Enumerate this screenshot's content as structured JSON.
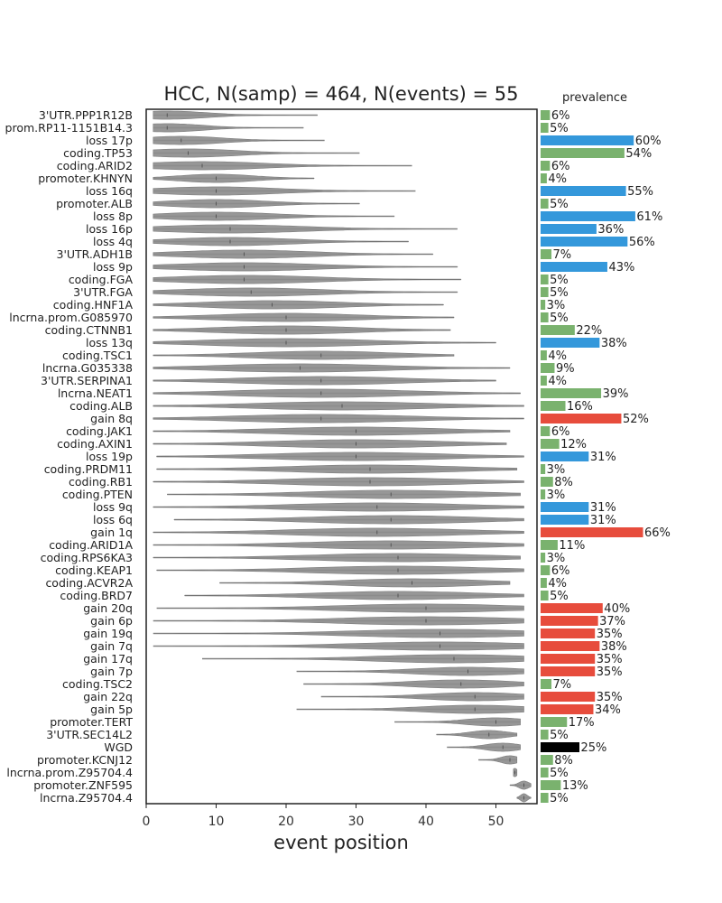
{
  "chart_data": {
    "type": "violin",
    "title": "HCC, N(samp) = 464, N(events) = 55",
    "xlabel": "event position",
    "ylabel": "",
    "xlim": [
      0,
      56
    ],
    "x_ticks": [
      "0",
      "10",
      "20",
      "30",
      "40",
      "50"
    ],
    "x_tick_values": [
      0,
      10,
      20,
      30,
      40,
      50
    ],
    "grid": false,
    "side_panel_title": "prevalence",
    "colors": {
      "violin": "#8c8c8c",
      "snv_noncoding": "#7ab26e",
      "loss": "#3498db",
      "gain": "#e74c3c",
      "wgd": "#000000"
    },
    "events": [
      {
        "name": "3'UTR.PPP1R12B",
        "min": 1,
        "max": 24.5,
        "mode": 3,
        "prevalence": 6,
        "type": "snv"
      },
      {
        "name": "prom.RP11-1151B14.3",
        "min": 1,
        "max": 22.5,
        "mode": 3,
        "prevalence": 5,
        "type": "snv"
      },
      {
        "name": "loss 17p",
        "min": 1,
        "max": 25.5,
        "mode": 5,
        "prevalence": 60,
        "type": "loss"
      },
      {
        "name": "coding.TP53",
        "min": 1,
        "max": 30.5,
        "mode": 6,
        "prevalence": 54,
        "type": "snv"
      },
      {
        "name": "coding.ARID2",
        "min": 1,
        "max": 38,
        "mode": 8,
        "prevalence": 6,
        "type": "snv"
      },
      {
        "name": "promoter.KHNYN",
        "min": 1,
        "max": 24,
        "mode": 10,
        "prevalence": 4,
        "type": "snv"
      },
      {
        "name": "loss 16q",
        "min": 1,
        "max": 38.5,
        "mode": 10,
        "prevalence": 55,
        "type": "loss"
      },
      {
        "name": "promoter.ALB",
        "min": 1,
        "max": 30.5,
        "mode": 10,
        "prevalence": 5,
        "type": "snv"
      },
      {
        "name": "loss 8p",
        "min": 1,
        "max": 35.5,
        "mode": 10,
        "prevalence": 61,
        "type": "loss"
      },
      {
        "name": "loss 16p",
        "min": 1,
        "max": 44.5,
        "mode": 12,
        "prevalence": 36,
        "type": "loss"
      },
      {
        "name": "loss 4q",
        "min": 1,
        "max": 37.5,
        "mode": 12,
        "prevalence": 56,
        "type": "loss"
      },
      {
        "name": "3'UTR.ADH1B",
        "min": 1,
        "max": 41,
        "mode": 14,
        "prevalence": 7,
        "type": "snv"
      },
      {
        "name": "loss 9p",
        "min": 1,
        "max": 44.5,
        "mode": 14,
        "prevalence": 43,
        "type": "loss"
      },
      {
        "name": "coding.FGA",
        "min": 1,
        "max": 45,
        "mode": 14,
        "prevalence": 5,
        "type": "snv"
      },
      {
        "name": "3'UTR.FGA",
        "min": 1,
        "max": 44.5,
        "mode": 15,
        "prevalence": 5,
        "type": "snv"
      },
      {
        "name": "coding.HNF1A",
        "min": 1,
        "max": 42.5,
        "mode": 18,
        "prevalence": 3,
        "type": "snv"
      },
      {
        "name": "lncrna.prom.G085970",
        "min": 1,
        "max": 44,
        "mode": 20,
        "prevalence": 5,
        "type": "snv"
      },
      {
        "name": "coding.CTNNB1",
        "min": 1,
        "max": 43.5,
        "mode": 20,
        "prevalence": 22,
        "type": "snv"
      },
      {
        "name": "loss 13q",
        "min": 1,
        "max": 50,
        "mode": 20,
        "prevalence": 38,
        "type": "loss"
      },
      {
        "name": "coding.TSC1",
        "min": 1,
        "max": 44,
        "mode": 25,
        "prevalence": 4,
        "type": "snv"
      },
      {
        "name": "lncrna.G035338",
        "min": 1,
        "max": 52,
        "mode": 22,
        "prevalence": 9,
        "type": "snv"
      },
      {
        "name": "3'UTR.SERPINA1",
        "min": 1,
        "max": 50,
        "mode": 25,
        "prevalence": 4,
        "type": "snv"
      },
      {
        "name": "lncrna.NEAT1",
        "min": 1,
        "max": 53.5,
        "mode": 25,
        "prevalence": 39,
        "type": "snv"
      },
      {
        "name": "coding.ALB",
        "min": 1,
        "max": 54,
        "mode": 28,
        "prevalence": 16,
        "type": "snv"
      },
      {
        "name": "gain 8q",
        "min": 1,
        "max": 54,
        "mode": 25,
        "prevalence": 52,
        "type": "gain"
      },
      {
        "name": "coding.JAK1",
        "min": 1,
        "max": 52,
        "mode": 30,
        "prevalence": 6,
        "type": "snv"
      },
      {
        "name": "coding.AXIN1",
        "min": 1,
        "max": 51.5,
        "mode": 30,
        "prevalence": 12,
        "type": "snv"
      },
      {
        "name": "loss 19p",
        "min": 1.5,
        "max": 54,
        "mode": 30,
        "prevalence": 31,
        "type": "loss"
      },
      {
        "name": "coding.PRDM11",
        "min": 1.5,
        "max": 53,
        "mode": 32,
        "prevalence": 3,
        "type": "snv"
      },
      {
        "name": "coding.RB1",
        "min": 1,
        "max": 54,
        "mode": 32,
        "prevalence": 8,
        "type": "snv"
      },
      {
        "name": "coding.PTEN",
        "min": 3,
        "max": 53.5,
        "mode": 35,
        "prevalence": 3,
        "type": "snv"
      },
      {
        "name": "loss 9q",
        "min": 1,
        "max": 54,
        "mode": 33,
        "prevalence": 31,
        "type": "loss"
      },
      {
        "name": "loss 6q",
        "min": 4,
        "max": 54,
        "mode": 35,
        "prevalence": 31,
        "type": "loss"
      },
      {
        "name": "gain 1q",
        "min": 1,
        "max": 54,
        "mode": 33,
        "prevalence": 66,
        "type": "gain"
      },
      {
        "name": "coding.ARID1A",
        "min": 1,
        "max": 54,
        "mode": 35,
        "prevalence": 11,
        "type": "snv"
      },
      {
        "name": "coding.RPS6KA3",
        "min": 1,
        "max": 53.5,
        "mode": 36,
        "prevalence": 3,
        "type": "snv"
      },
      {
        "name": "coding.KEAP1",
        "min": 1.5,
        "max": 54,
        "mode": 36,
        "prevalence": 6,
        "type": "snv"
      },
      {
        "name": "coding.ACVR2A",
        "min": 10.5,
        "max": 52,
        "mode": 38,
        "prevalence": 4,
        "type": "snv"
      },
      {
        "name": "coding.BRD7",
        "min": 5.5,
        "max": 54,
        "mode": 36,
        "prevalence": 5,
        "type": "snv"
      },
      {
        "name": "gain 20q",
        "min": 1.5,
        "max": 54,
        "mode": 40,
        "prevalence": 40,
        "type": "gain"
      },
      {
        "name": "gain 6p",
        "min": 1,
        "max": 54,
        "mode": 40,
        "prevalence": 37,
        "type": "gain"
      },
      {
        "name": "gain 19q",
        "min": 1,
        "max": 54,
        "mode": 42,
        "prevalence": 35,
        "type": "gain"
      },
      {
        "name": "gain 7q",
        "min": 1,
        "max": 54,
        "mode": 42,
        "prevalence": 38,
        "type": "gain"
      },
      {
        "name": "gain 17q",
        "min": 8,
        "max": 54,
        "mode": 44,
        "prevalence": 35,
        "type": "gain"
      },
      {
        "name": "gain 7p",
        "min": 21.5,
        "max": 54,
        "mode": 46,
        "prevalence": 35,
        "type": "gain"
      },
      {
        "name": "coding.TSC2",
        "min": 22.5,
        "max": 54,
        "mode": 45,
        "prevalence": 7,
        "type": "snv"
      },
      {
        "name": "gain 22q",
        "min": 25,
        "max": 54,
        "mode": 47,
        "prevalence": 35,
        "type": "gain"
      },
      {
        "name": "gain 5p",
        "min": 21.5,
        "max": 54,
        "mode": 47,
        "prevalence": 34,
        "type": "gain"
      },
      {
        "name": "promoter.TERT",
        "min": 35.5,
        "max": 53.5,
        "mode": 50,
        "prevalence": 17,
        "type": "snv"
      },
      {
        "name": "3'UTR.SEC14L2",
        "min": 41.5,
        "max": 53,
        "mode": 49,
        "prevalence": 5,
        "type": "snv"
      },
      {
        "name": "WGD",
        "min": 43,
        "max": 53.5,
        "mode": 51,
        "prevalence": 25,
        "type": "wgd"
      },
      {
        "name": "promoter.KCNJ12",
        "min": 47.5,
        "max": 53,
        "mode": 52,
        "prevalence": 8,
        "type": "snv"
      },
      {
        "name": "lncrna.prom.Z95704.4",
        "min": 52.5,
        "max": 53,
        "mode": 52.7,
        "prevalence": 5,
        "type": "snv"
      },
      {
        "name": "promoter.ZNF595",
        "min": 52,
        "max": 55,
        "mode": 54,
        "prevalence": 13,
        "type": "snv"
      },
      {
        "name": "lncrna.Z95704.4",
        "min": 53,
        "max": 55,
        "mode": 54,
        "prevalence": 5,
        "type": "snv"
      }
    ]
  }
}
